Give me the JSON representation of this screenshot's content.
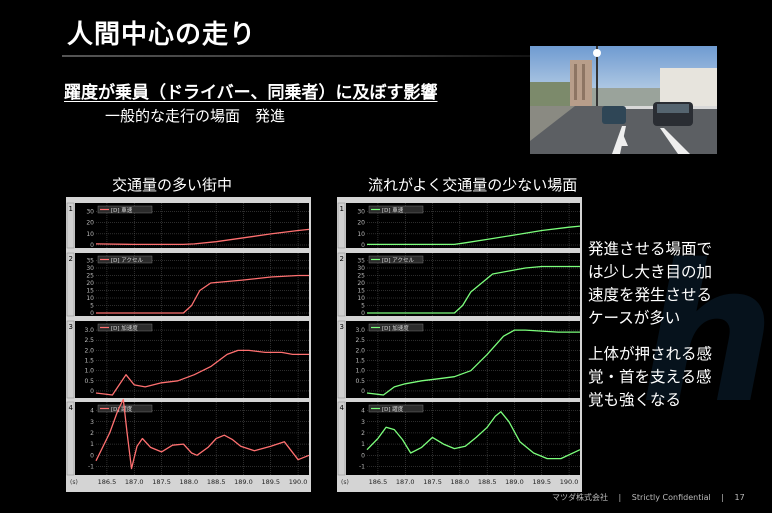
{
  "slide": {
    "title": "人間中心の走り",
    "heading": "躍度が乗員（ドライバー、同乗者）に及ぼす影響",
    "subheading": "一般的な走行の場面　発進",
    "note_lines_1": [
      "発進させる場面で",
      "は少し大き目の加",
      "速度を発生させる",
      "ケースが多い"
    ],
    "note_lines_2": [
      "上体が押される感",
      "覚・首を支える感",
      "覚も強くなる"
    ]
  },
  "footer": {
    "company": "マツダ株式会社",
    "confidential": "Strictly Confidential",
    "page": "17"
  },
  "colors": {
    "left_series": "#ff7070",
    "right_series": "#7cff7c",
    "panel_bg": "#000000",
    "frame": "#d4d4d4"
  },
  "chart_data": [
    {
      "type": "line",
      "title": "交通量の多い街中",
      "x_ticks": [
        "186.5",
        "187.0",
        "187.5",
        "188.0",
        "188.5",
        "189.0",
        "189.5",
        "190.0"
      ],
      "xlim": [
        186.3,
        190.2
      ],
      "panels": [
        {
          "index": "1",
          "legend": "車速",
          "yticks": [
            "30",
            "20",
            "10",
            "0"
          ],
          "ylim": [
            0,
            35
          ],
          "x": [
            186.3,
            187.0,
            187.5,
            187.9,
            188.1,
            188.5,
            189.0,
            189.5,
            190.0,
            190.2
          ],
          "y": [
            1,
            0.5,
            0.5,
            0.5,
            1,
            3,
            6.5,
            10,
            13,
            14
          ]
        },
        {
          "index": "2",
          "legend": "アクセル",
          "yticks": [
            "35",
            "30",
            "25",
            "20",
            "15",
            "10",
            "5",
            "0"
          ],
          "ylim": [
            0,
            38
          ],
          "x": [
            186.3,
            187.0,
            187.5,
            187.9,
            188.05,
            188.2,
            188.4,
            188.7,
            189.0,
            189.5,
            190.0,
            190.2
          ],
          "y": [
            0,
            0,
            0,
            0,
            5,
            15,
            20,
            21,
            22,
            24,
            25,
            25
          ]
        },
        {
          "index": "3",
          "legend": "加速度",
          "yticks": [
            "3.0",
            "2.5",
            "2.0",
            "1.5",
            "1.0",
            "0.5",
            "0"
          ],
          "ylim": [
            -0.2,
            3.3
          ],
          "x": [
            186.3,
            186.6,
            186.85,
            187.0,
            187.2,
            187.5,
            187.8,
            188.1,
            188.4,
            188.7,
            188.9,
            189.1,
            189.4,
            189.7,
            189.9,
            190.2
          ],
          "y": [
            -0.1,
            -0.2,
            0.8,
            0.3,
            0.2,
            0.4,
            0.5,
            0.8,
            1.2,
            1.8,
            2.0,
            2.0,
            1.9,
            1.9,
            1.8,
            1.8
          ]
        },
        {
          "index": "4",
          "legend": "躍度",
          "yticks": [
            "4",
            "3",
            "2",
            "1",
            "0",
            "-1"
          ],
          "ylim": [
            -1.5,
            4.5
          ],
          "x": [
            186.3,
            186.55,
            186.7,
            186.8,
            186.87,
            186.95,
            187.05,
            187.15,
            187.3,
            187.5,
            187.7,
            187.9,
            188.05,
            188.15,
            188.35,
            188.5,
            188.65,
            188.8,
            188.95,
            189.2,
            189.5,
            189.75,
            190.0,
            190.2
          ],
          "y": [
            -0.5,
            2.0,
            4.0,
            5.0,
            2.0,
            -1.2,
            0.8,
            1.5,
            0.7,
            0.3,
            0.9,
            1.0,
            0.2,
            0.0,
            0.7,
            1.5,
            1.8,
            1.4,
            0.8,
            0.4,
            0.8,
            1.2,
            -0.4,
            0.0
          ]
        }
      ]
    },
    {
      "type": "line",
      "title": "流れがよく交通量の少ない場面",
      "x_ticks": [
        "186.5",
        "187.0",
        "187.5",
        "188.0",
        "188.5",
        "189.0",
        "189.5",
        "190.0"
      ],
      "xlim": [
        186.3,
        190.2
      ],
      "panels": [
        {
          "index": "1",
          "legend": "車速",
          "yticks": [
            "30",
            "20",
            "10",
            "0"
          ],
          "ylim": [
            0,
            35
          ],
          "x": [
            186.3,
            187.0,
            187.5,
            187.9,
            188.1,
            188.5,
            189.0,
            189.5,
            190.0,
            190.2
          ],
          "y": [
            0.5,
            0.5,
            0.5,
            0.5,
            2,
            5,
            9,
            13,
            16,
            17
          ]
        },
        {
          "index": "2",
          "legend": "アクセル",
          "yticks": [
            "35",
            "30",
            "25",
            "20",
            "15",
            "10",
            "5",
            "0"
          ],
          "ylim": [
            0,
            38
          ],
          "x": [
            186.3,
            187.0,
            187.5,
            187.9,
            188.05,
            188.2,
            188.4,
            188.6,
            188.9,
            189.2,
            189.5,
            189.8,
            190.2
          ],
          "y": [
            0,
            0,
            0,
            0,
            5,
            14,
            20,
            26,
            28,
            30,
            31,
            31,
            31
          ]
        },
        {
          "index": "3",
          "legend": "加速度",
          "yticks": [
            "3.0",
            "2.5",
            "2.0",
            "1.5",
            "1.0",
            "0.5",
            "0"
          ],
          "ylim": [
            -0.2,
            3.3
          ],
          "x": [
            186.3,
            186.6,
            186.8,
            187.0,
            187.3,
            187.6,
            187.9,
            188.2,
            188.5,
            188.8,
            189.0,
            189.2,
            189.5,
            189.8,
            190.2
          ],
          "y": [
            -0.1,
            -0.2,
            0.2,
            0.35,
            0.5,
            0.6,
            0.7,
            1.0,
            1.8,
            2.7,
            3.0,
            3.0,
            2.95,
            2.9,
            2.9
          ]
        },
        {
          "index": "4",
          "legend": "躍度",
          "yticks": [
            "4",
            "3",
            "2",
            "1",
            "0",
            "-1"
          ],
          "ylim": [
            -1.5,
            4.5
          ],
          "x": [
            186.3,
            186.5,
            186.65,
            186.8,
            186.95,
            187.1,
            187.3,
            187.5,
            187.7,
            187.9,
            188.1,
            188.3,
            188.5,
            188.65,
            188.75,
            188.9,
            189.1,
            189.35,
            189.6,
            189.85,
            190.2
          ],
          "y": [
            0.5,
            1.5,
            2.5,
            2.3,
            1.4,
            0.2,
            0.7,
            1.6,
            1.0,
            0.6,
            0.8,
            1.6,
            2.5,
            3.5,
            3.9,
            3.0,
            1.2,
            0.2,
            -0.3,
            -0.3,
            0.5
          ]
        }
      ]
    }
  ]
}
